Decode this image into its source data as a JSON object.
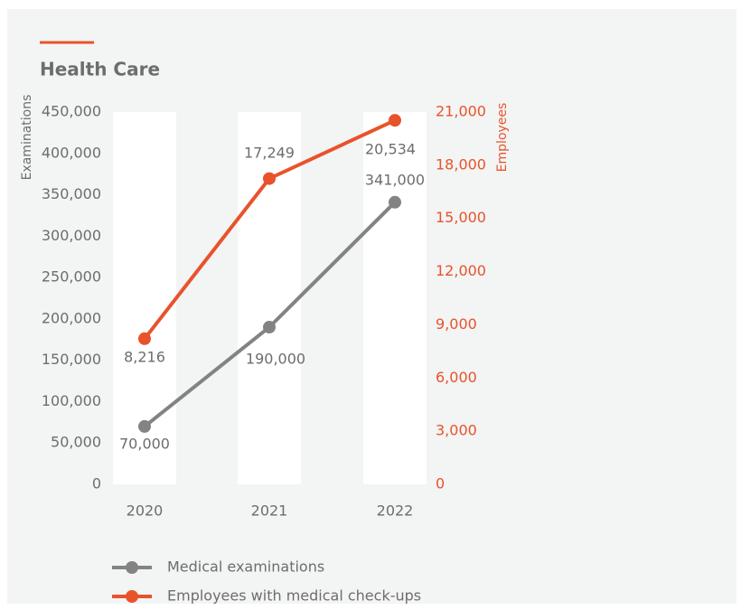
{
  "chart_data": {
    "type": "line",
    "title": "Health Care",
    "categories": [
      "2020",
      "2021",
      "2022"
    ],
    "series": [
      {
        "name": "Medical examinations",
        "color": "#838383",
        "values": [
          70000,
          190000,
          341000
        ],
        "value_labels": [
          "70,000",
          "190,000",
          "341,000"
        ]
      },
      {
        "name": "Employees with medical check-ups",
        "color": "#e8532b",
        "axis": "y2",
        "values": [
          8216,
          17249,
          20534
        ],
        "value_labels": [
          "8,216",
          "17,249",
          "20,534"
        ]
      }
    ],
    "ylabel": "Examinations",
    "y2label": "Employees",
    "ylim": [
      0,
      450000
    ],
    "yticks": [
      0,
      {
        "value": 50000,
        "label": "50,000"
      },
      {
        "value": 100000,
        "label": "100,000"
      },
      {
        "value": 150000,
        "label": "150,000"
      },
      {
        "value": 200000,
        "label": "200,000"
      },
      {
        "value": 250000,
        "label": "250,000"
      },
      {
        "value": 300000,
        "label": "300,000"
      },
      {
        "value": 350000,
        "label": "350,000"
      },
      {
        "value": 400000,
        "label": "400,000"
      },
      {
        "value": 450000,
        "label": "450,000"
      }
    ],
    "y2lim": [
      0,
      21000
    ],
    "y2ticks": [
      0,
      {
        "value": 3000,
        "label": "3,000"
      },
      {
        "value": 6000,
        "label": "6,000"
      },
      {
        "value": 9000,
        "label": "9,000"
      },
      {
        "value": 12000,
        "label": "12,000"
      },
      {
        "value": 15000,
        "label": "15,000"
      },
      {
        "value": 18000,
        "label": "18,000"
      },
      {
        "value": 21000,
        "label": "21,000"
      }
    ]
  }
}
